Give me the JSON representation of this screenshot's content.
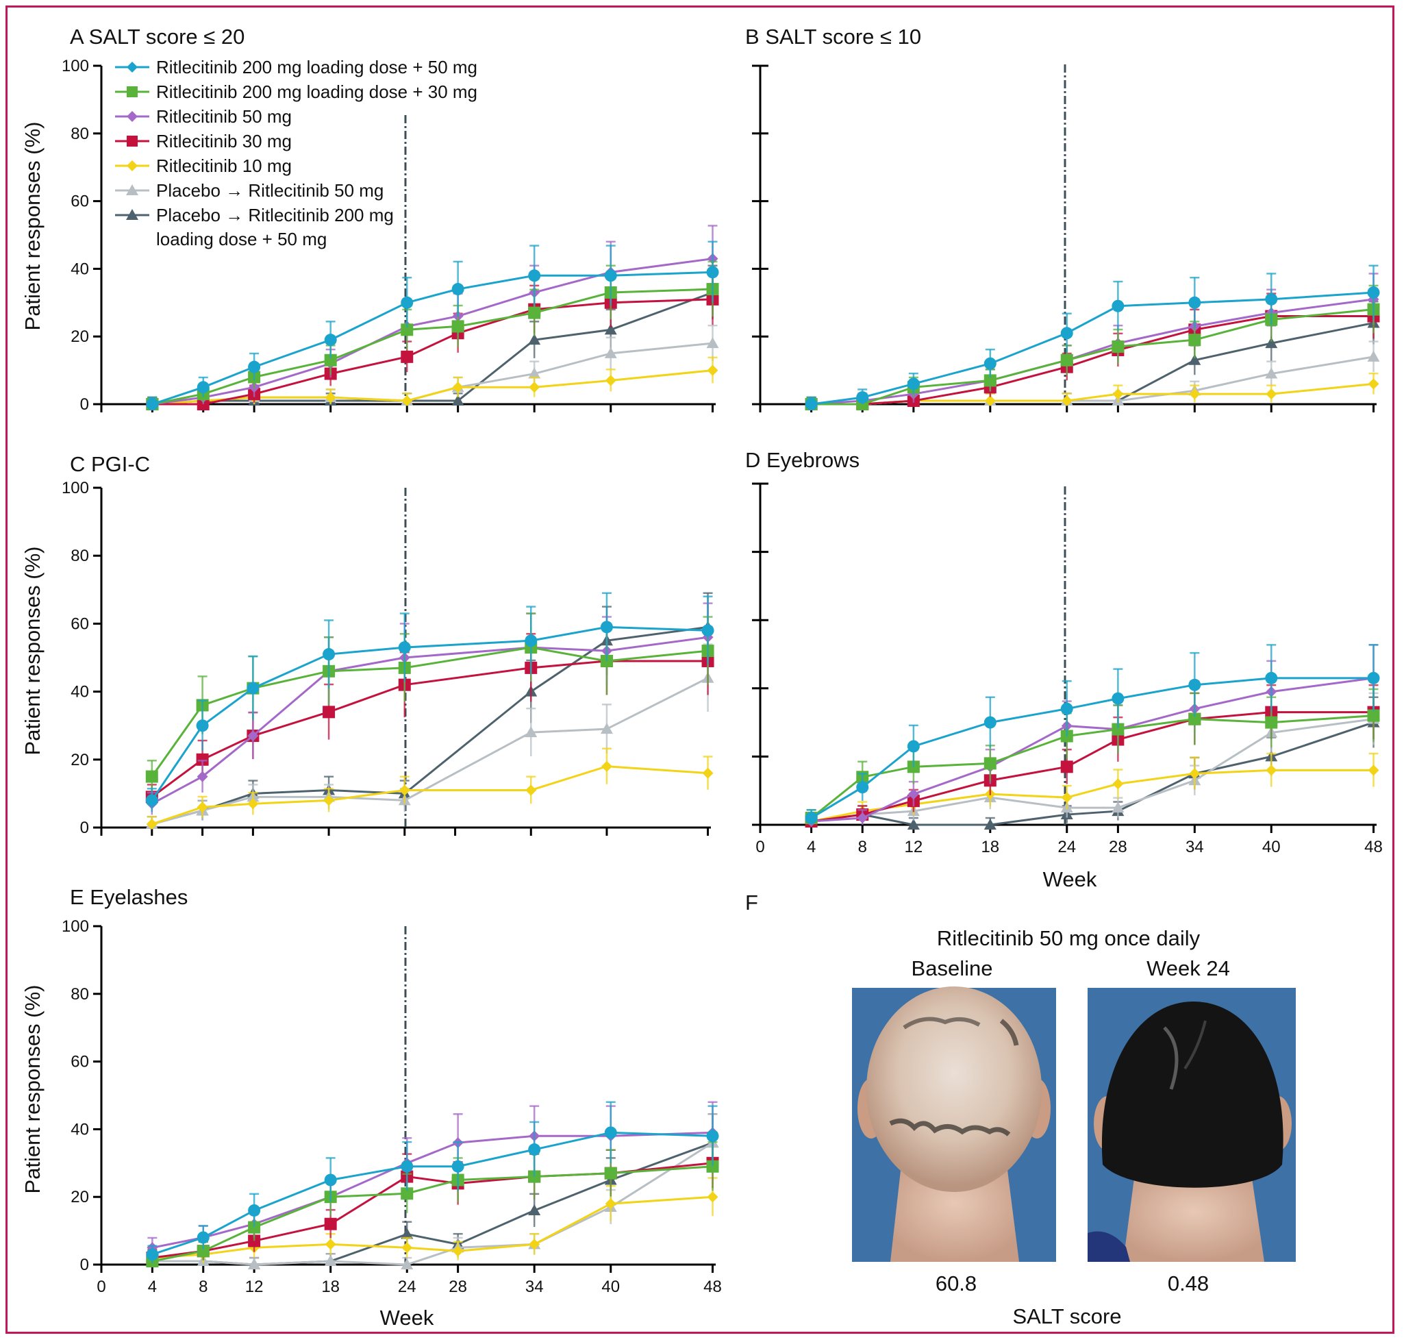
{
  "x_ticks": [
    "0",
    "4",
    "8",
    "12",
    "18",
    "24",
    "28",
    "34",
    "40",
    "48"
  ],
  "y_ticks": [
    "0",
    "20",
    "40",
    "60",
    "80",
    "100"
  ],
  "y_axis_label": "Patient responses (%)",
  "x_axis_label": "Week",
  "series_colors": [
    "#1aa3cc",
    "#59b33a",
    "#a468c8",
    "#c4123e",
    "#f2d316",
    "#b7bfc4",
    "#4e626d"
  ],
  "legend": [
    {
      "label": "Ritlecitinib 200 mg loading dose + 50 mg",
      "marker": "diamond"
    },
    {
      "label": "Ritlecitinib 200 mg loading dose + 30 mg",
      "marker": "square"
    },
    {
      "label": "Ritlecitinib 50 mg",
      "marker": "diamond"
    },
    {
      "label": "Ritlecitinib 30 mg",
      "marker": "square"
    },
    {
      "label": "Ritlecitinib 10 mg",
      "marker": "diamond"
    },
    {
      "label": "Placebo → Ritlecitinib 50 mg",
      "marker": "triangle"
    },
    {
      "label": "Placebo → Ritlecitinib 200 mg",
      "label2": "loading dose + 50 mg",
      "marker": "triangle"
    }
  ],
  "chart_data": [
    {
      "type": "line",
      "title": "A SALT score ≤ 20",
      "ylabel": "Patient responses (%)",
      "xlabel": "",
      "ylim": [
        0,
        100
      ],
      "x": [
        4,
        8,
        12,
        18,
        24,
        28,
        34,
        40,
        48
      ],
      "reference_line_x": 24,
      "series": [
        {
          "name": "Ritlecitinib 200 mg loading dose + 50 mg",
          "values": [
            0,
            5,
            11,
            19,
            30,
            34,
            38,
            38,
            39
          ]
        },
        {
          "name": "Ritlecitinib 200 mg loading dose + 30 mg",
          "values": [
            0,
            3,
            8,
            13,
            22,
            23,
            27,
            33,
            34
          ]
        },
        {
          "name": "Ritlecitinib 50 mg",
          "values": [
            0,
            2,
            5,
            12,
            23,
            26,
            33,
            39,
            43
          ]
        },
        {
          "name": "Ritlecitinib 30 mg",
          "values": [
            0,
            0,
            3,
            9,
            14,
            21,
            28,
            30,
            31
          ]
        },
        {
          "name": "Ritlecitinib 10 mg",
          "values": [
            0,
            1,
            2,
            2,
            1,
            5,
            5,
            7,
            10
          ]
        },
        {
          "name": "Placebo → Ritlecitinib 50 mg",
          "values": [
            0,
            1,
            2,
            2,
            1,
            5,
            9,
            15,
            18
          ]
        },
        {
          "name": "Placebo → Ritlecitinib 200 mg loading dose + 50 mg",
          "values": [
            0,
            1,
            1,
            1,
            1,
            1,
            19,
            22,
            33
          ]
        }
      ]
    },
    {
      "type": "line",
      "title": "B SALT score ≤ 10",
      "ylabel": "",
      "xlabel": "",
      "ylim": [
        0,
        100
      ],
      "x": [
        4,
        8,
        12,
        18,
        24,
        28,
        34,
        40,
        48
      ],
      "reference_line_x": 24,
      "series": [
        {
          "name": "Ritlecitinib 200 mg loading dose + 50 mg",
          "values": [
            0,
            2,
            6,
            12,
            21,
            29,
            30,
            31,
            33
          ]
        },
        {
          "name": "Ritlecitinib 200 mg loading dose + 30 mg",
          "values": [
            0,
            0,
            5,
            7,
            13,
            17,
            19,
            25,
            28
          ]
        },
        {
          "name": "Ritlecitinib 50 mg",
          "values": [
            0,
            1,
            3,
            7,
            13,
            18,
            23,
            27,
            31
          ]
        },
        {
          "name": "Ritlecitinib 30 mg",
          "values": [
            0,
            0,
            1,
            5,
            11,
            16,
            22,
            26,
            26
          ]
        },
        {
          "name": "Ritlecitinib 10 mg",
          "values": [
            0,
            0,
            1,
            1,
            1,
            3,
            3,
            3,
            6
          ]
        },
        {
          "name": "Placebo → Ritlecitinib 50 mg",
          "values": [
            0,
            0,
            1,
            1,
            1,
            1,
            4,
            9,
            14
          ]
        },
        {
          "name": "Placebo → Ritlecitinib 200 mg loading dose + 50 mg",
          "values": [
            0,
            0,
            1,
            1,
            1,
            1,
            13,
            18,
            24
          ]
        }
      ]
    },
    {
      "type": "line",
      "title": "C PGI-C",
      "ylabel": "Patient responses (%)",
      "xlabel": "",
      "ylim": [
        0,
        100
      ],
      "x": [
        4,
        8,
        12,
        18,
        24,
        34,
        40,
        48
      ],
      "reference_line_x": 24,
      "series": [
        {
          "name": "Ritlecitinib 200 mg loading dose + 50 mg",
          "values": [
            8,
            30,
            41,
            51,
            53,
            55,
            59,
            58
          ]
        },
        {
          "name": "Ritlecitinib 200 mg loading dose + 30 mg",
          "values": [
            15,
            36,
            41,
            46,
            47,
            53,
            49,
            52
          ]
        },
        {
          "name": "Ritlecitinib 50 mg",
          "values": [
            7,
            15,
            27,
            46,
            50,
            53,
            52,
            56
          ]
        },
        {
          "name": "Ritlecitinib 30 mg",
          "values": [
            9,
            20,
            27,
            34,
            42,
            47,
            49,
            49
          ]
        },
        {
          "name": "Ritlecitinib 10 mg",
          "values": [
            1,
            6,
            7,
            8,
            11,
            11,
            18,
            16
          ]
        },
        {
          "name": "Placebo → Ritlecitinib 50 mg",
          "values": [
            1,
            5,
            9,
            9,
            8,
            28,
            29,
            44
          ]
        },
        {
          "name": "Placebo → Ritlecitinib 200 mg loading dose + 50 mg",
          "values": [
            1,
            5,
            10,
            11,
            10,
            40,
            55,
            59
          ]
        }
      ]
    },
    {
      "type": "line",
      "title": "D Eyebrows",
      "ylabel": "",
      "xlabel": "Week",
      "ylim": [
        0,
        100
      ],
      "x": [
        4,
        8,
        12,
        18,
        24,
        28,
        34,
        40,
        48
      ],
      "reference_line_x": 24,
      "series": [
        {
          "name": "Ritlecitinib 200 mg loading dose + 50 mg",
          "values": [
            2,
            11,
            23,
            30,
            34,
            37,
            41,
            43,
            43
          ]
        },
        {
          "name": "Ritlecitinib 200 mg loading dose + 30 mg",
          "values": [
            2,
            14,
            17,
            18,
            26,
            28,
            31,
            30,
            32
          ]
        },
        {
          "name": "Ritlecitinib 50 mg",
          "values": [
            1,
            2,
            9,
            17,
            29,
            28,
            34,
            39,
            43
          ]
        },
        {
          "name": "Ritlecitinib 30 mg",
          "values": [
            1,
            3,
            7,
            13,
            17,
            25,
            31,
            33,
            33
          ]
        },
        {
          "name": "Ritlecitinib 10 mg",
          "values": [
            1,
            4,
            6,
            9,
            8,
            12,
            15,
            16,
            16
          ]
        },
        {
          "name": "Placebo → Ritlecitinib 50 mg",
          "values": [
            1,
            3,
            4,
            8,
            5,
            5,
            13,
            27,
            31
          ]
        },
        {
          "name": "Placebo → Ritlecitinib 200 mg loading dose + 50 mg",
          "values": [
            1,
            3,
            0,
            0,
            3,
            4,
            15,
            20,
            30
          ]
        }
      ]
    },
    {
      "type": "line",
      "title": "E Eyelashes",
      "ylabel": "Patient responses (%)",
      "xlabel": "Week",
      "ylim": [
        0,
        100
      ],
      "x": [
        4,
        8,
        12,
        18,
        24,
        28,
        34,
        40,
        48
      ],
      "reference_line_x": 24,
      "series": [
        {
          "name": "Ritlecitinib 200 mg loading dose + 50 mg",
          "values": [
            3,
            8,
            16,
            25,
            29,
            29,
            34,
            39,
            38
          ]
        },
        {
          "name": "Ritlecitinib 200 mg loading dose + 30 mg",
          "values": [
            1,
            4,
            11,
            20,
            21,
            25,
            26,
            27,
            29
          ]
        },
        {
          "name": "Ritlecitinib 50 mg",
          "values": [
            5,
            8,
            12,
            20,
            30,
            36,
            38,
            38,
            39
          ]
        },
        {
          "name": "Ritlecitinib 30 mg",
          "values": [
            2,
            4,
            7,
            12,
            26,
            24,
            26,
            27,
            30
          ]
        },
        {
          "name": "Ritlecitinib 10 mg",
          "values": [
            2,
            3,
            5,
            6,
            5,
            4,
            6,
            18,
            20
          ]
        },
        {
          "name": "Placebo → Ritlecitinib 50 mg",
          "values": [
            1,
            1,
            0,
            1,
            0,
            5,
            6,
            17,
            36
          ]
        },
        {
          "name": "Placebo → Ritlecitinib 200 mg loading dose + 50 mg",
          "values": [
            1,
            1,
            0,
            1,
            9,
            6,
            16,
            25,
            36
          ]
        }
      ]
    }
  ],
  "panel_f": {
    "letter": "F",
    "title": "Ritlecitinib 50 mg once daily",
    "baseline_label": "Baseline",
    "week_label": "Week 24",
    "baseline_score": "60.8",
    "week_score": "0.48",
    "score_label": "SALT score"
  }
}
